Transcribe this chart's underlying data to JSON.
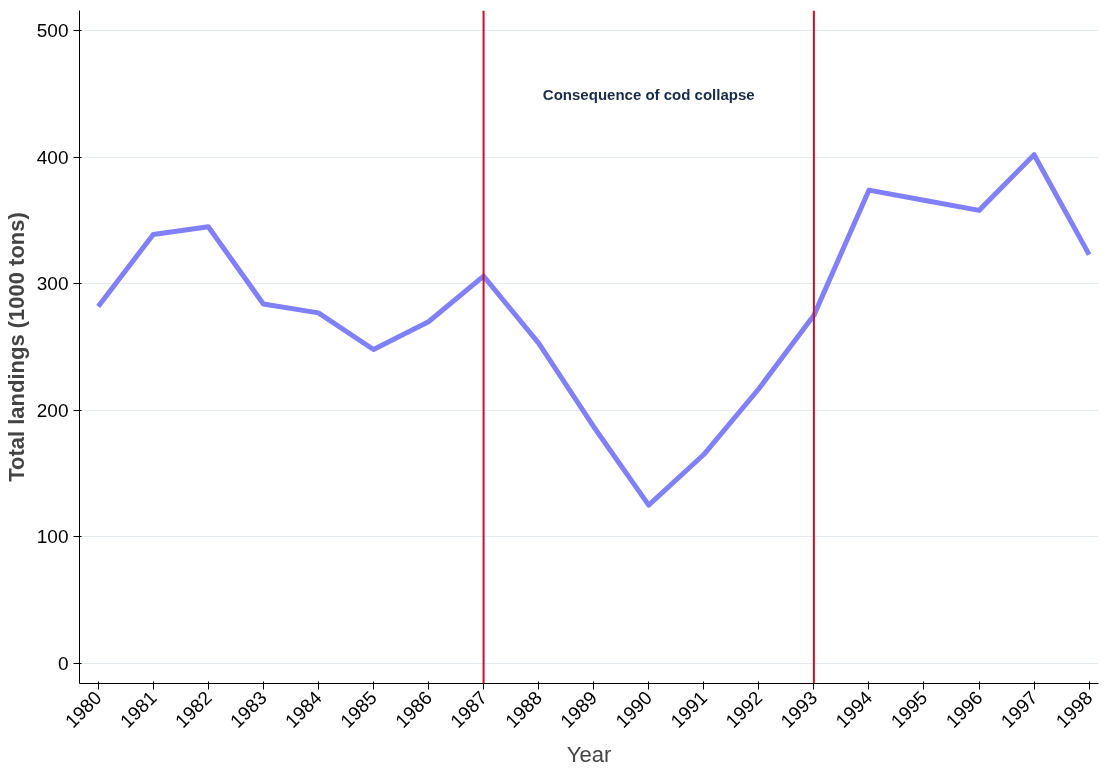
{
  "chart_data": {
    "type": "line",
    "xlabel": "Year",
    "ylabel": "Total landings (1000 tons)",
    "x": [
      1980,
      1981,
      1982,
      1983,
      1984,
      1985,
      1986,
      1987,
      1988,
      1989,
      1990,
      1991,
      1992,
      1993,
      1994,
      1995,
      1996,
      1997,
      1998
    ],
    "series": [
      {
        "color": "#8080f8",
        "values": [
          282,
          339,
          345,
          284,
          277,
          248,
          270,
          306,
          253,
          187,
          125,
          165,
          217,
          275,
          374,
          366,
          358,
          402,
          323
        ]
      }
    ],
    "xlim": [
      1979.66,
      1998.17
    ],
    "ylim": [
      -16,
      516
    ],
    "xticks": [
      1980,
      1981,
      1982,
      1983,
      1984,
      1985,
      1986,
      1987,
      1988,
      1989,
      1990,
      1991,
      1992,
      1993,
      1994,
      1995,
      1996,
      1997,
      1998
    ],
    "yticks": [
      0,
      100,
      200,
      300,
      400,
      500
    ],
    "ref_lines": [
      {
        "axis": "x",
        "value": 1987,
        "color": "#c8102e"
      },
      {
        "axis": "x",
        "value": 1993,
        "color": "#c8102e"
      }
    ],
    "annotations": [
      "Consequence of cod collapse"
    ],
    "grid": "y",
    "marker": "none",
    "line_style": "solid"
  }
}
